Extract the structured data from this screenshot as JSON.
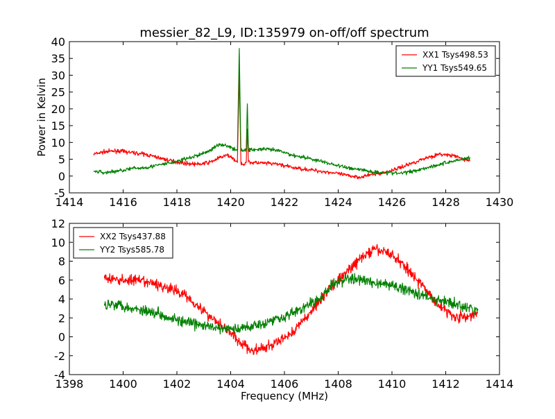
{
  "chart_data": [
    {
      "type": "line",
      "title": "messier_82_L9, ID:135979 on-off/off spectrum",
      "xlabel": "",
      "ylabel": "Power in Kelvin",
      "xlim": [
        1414,
        1430
      ],
      "ylim": [
        -5,
        40
      ],
      "xticks": [
        1414,
        1416,
        1418,
        1420,
        1422,
        1424,
        1426,
        1428,
        1430
      ],
      "yticks": [
        -5,
        0,
        5,
        10,
        15,
        20,
        25,
        30,
        35,
        40
      ],
      "grid": false,
      "legend_position": "top-right",
      "series": [
        {
          "name": "XX1 Tsys498.53",
          "color": "#ff0000",
          "x": [
            1414.9,
            1415.3,
            1415.8,
            1416.3,
            1416.8,
            1417.3,
            1417.8,
            1418.3,
            1418.8,
            1419.2,
            1419.6,
            1419.9,
            1420.1,
            1420.25,
            1420.32,
            1420.38,
            1420.5,
            1420.58,
            1420.62,
            1420.66,
            1420.8,
            1421.3,
            1421.8,
            1422.3,
            1422.8,
            1423.3,
            1423.8,
            1424.3,
            1424.8,
            1425.3,
            1425.8,
            1426.3,
            1426.8,
            1427.3,
            1427.8,
            1428.3,
            1428.9
          ],
          "y": [
            6.5,
            7.2,
            7.5,
            7.0,
            6.5,
            5.5,
            4.5,
            3.8,
            3.5,
            4.0,
            5.5,
            6.2,
            5.2,
            4.0,
            30.5,
            4.0,
            3.5,
            4.2,
            14.0,
            4.2,
            4.0,
            3.8,
            3.5,
            2.5,
            2.0,
            1.5,
            1.0,
            0.2,
            -0.3,
            0.5,
            1.2,
            2.5,
            4.0,
            5.5,
            6.5,
            6.0,
            4.5
          ]
        },
        {
          "name": "YY1 Tsys549.65",
          "color": "#008000",
          "x": [
            1414.9,
            1415.3,
            1415.8,
            1416.3,
            1416.8,
            1417.3,
            1417.8,
            1418.3,
            1418.8,
            1419.2,
            1419.6,
            1419.9,
            1420.1,
            1420.25,
            1420.32,
            1420.38,
            1420.5,
            1420.58,
            1420.62,
            1420.66,
            1420.8,
            1421.3,
            1421.8,
            1422.3,
            1422.8,
            1423.3,
            1423.8,
            1424.3,
            1424.8,
            1425.3,
            1425.8,
            1426.3,
            1426.8,
            1427.3,
            1427.8,
            1428.3,
            1428.9
          ],
          "y": [
            1.5,
            1.0,
            1.5,
            2.2,
            2.5,
            3.2,
            4.0,
            5.0,
            6.2,
            7.5,
            9.5,
            9.0,
            8.0,
            7.5,
            38.0,
            7.8,
            7.5,
            8.0,
            21.5,
            8.0,
            7.8,
            8.0,
            7.5,
            6.2,
            5.5,
            4.5,
            3.5,
            2.5,
            2.0,
            1.2,
            1.0,
            0.8,
            1.5,
            2.5,
            3.5,
            4.5,
            5.5
          ]
        }
      ]
    },
    {
      "type": "line",
      "title": "",
      "xlabel": "Frequency (MHz)",
      "ylabel": "",
      "xlim": [
        1398,
        1414
      ],
      "ylim": [
        -4,
        12
      ],
      "xticks": [
        1398,
        1400,
        1402,
        1404,
        1406,
        1408,
        1410,
        1412,
        1414
      ],
      "yticks": [
        -4,
        -2,
        0,
        2,
        4,
        6,
        8,
        10,
        12
      ],
      "grid": false,
      "legend_position": "top-left",
      "series": [
        {
          "name": "XX2 Tsys437.88",
          "color": "#ff0000",
          "x": [
            1399.3,
            1399.8,
            1400.3,
            1400.8,
            1401.3,
            1401.8,
            1402.3,
            1402.8,
            1403.3,
            1403.8,
            1404.3,
            1404.8,
            1405.3,
            1405.8,
            1406.3,
            1406.8,
            1407.3,
            1407.8,
            1408.3,
            1408.8,
            1409.3,
            1409.8,
            1410.3,
            1410.8,
            1411.3,
            1411.8,
            1412.3,
            1412.8,
            1413.2
          ],
          "y": [
            6.2,
            6.0,
            6.0,
            5.8,
            5.5,
            5.0,
            4.5,
            3.2,
            2.0,
            1.0,
            -0.5,
            -1.5,
            -1.2,
            -0.5,
            0.5,
            2.0,
            3.8,
            5.5,
            6.8,
            8.2,
            9.2,
            9.0,
            8.0,
            6.5,
            4.8,
            3.2,
            2.2,
            2.0,
            2.5
          ]
        },
        {
          "name": "YY2 Tsys585.78",
          "color": "#008000",
          "x": [
            1399.3,
            1399.8,
            1400.3,
            1400.8,
            1401.3,
            1401.8,
            1402.3,
            1402.8,
            1403.3,
            1403.8,
            1404.3,
            1404.8,
            1405.3,
            1405.8,
            1406.3,
            1406.8,
            1407.3,
            1407.8,
            1408.3,
            1408.8,
            1409.3,
            1409.8,
            1410.3,
            1410.8,
            1411.3,
            1411.8,
            1412.3,
            1412.8,
            1413.2
          ],
          "y": [
            3.5,
            3.5,
            3.0,
            2.8,
            2.5,
            2.0,
            1.5,
            1.3,
            1.0,
            0.8,
            0.8,
            1.2,
            1.5,
            2.0,
            2.5,
            3.2,
            4.0,
            5.5,
            6.2,
            6.0,
            5.8,
            5.5,
            5.2,
            4.8,
            4.2,
            3.8,
            3.5,
            3.0,
            2.8
          ]
        }
      ]
    }
  ]
}
